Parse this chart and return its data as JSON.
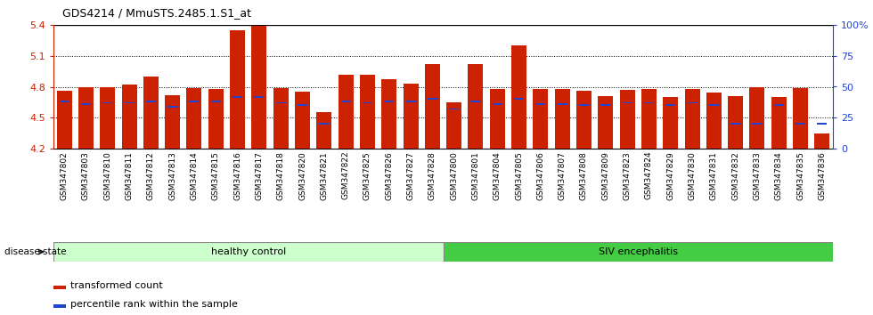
{
  "title": "GDS4214 / MmuSTS.2485.1.S1_at",
  "samples": [
    "GSM347802",
    "GSM347803",
    "GSM347810",
    "GSM347811",
    "GSM347812",
    "GSM347813",
    "GSM347814",
    "GSM347815",
    "GSM347816",
    "GSM347817",
    "GSM347818",
    "GSM347820",
    "GSM347821",
    "GSM347822",
    "GSM347825",
    "GSM347826",
    "GSM347827",
    "GSM347828",
    "GSM347800",
    "GSM347801",
    "GSM347804",
    "GSM347805",
    "GSM347806",
    "GSM347807",
    "GSM347808",
    "GSM347809",
    "GSM347823",
    "GSM347824",
    "GSM347829",
    "GSM347830",
    "GSM347831",
    "GSM347832",
    "GSM347833",
    "GSM347834",
    "GSM347835",
    "GSM347836"
  ],
  "transformed_count": [
    4.76,
    4.8,
    4.8,
    4.82,
    4.9,
    4.72,
    4.79,
    4.78,
    5.35,
    5.39,
    4.79,
    4.75,
    4.55,
    4.92,
    4.92,
    4.87,
    4.83,
    5.02,
    4.65,
    5.02,
    4.78,
    5.2,
    4.78,
    4.78,
    4.76,
    4.71,
    4.77,
    4.78,
    4.7,
    4.78,
    4.74,
    4.71,
    4.8,
    4.7,
    4.79,
    4.35
  ],
  "percentile_rank": [
    38,
    36,
    37,
    37,
    38,
    34,
    38,
    38,
    42,
    42,
    37,
    35,
    20,
    38,
    37,
    38,
    38,
    40,
    32,
    38,
    36,
    40,
    36,
    36,
    35,
    35,
    37,
    37,
    35,
    37,
    35,
    20,
    20,
    35,
    20,
    20
  ],
  "healthy_count": 18,
  "siv_count": 18,
  "ylim_left": [
    4.2,
    5.4
  ],
  "ylim_right": [
    0,
    100
  ],
  "yticks_left": [
    4.2,
    4.5,
    4.8,
    5.1,
    5.4
  ],
  "yticks_right": [
    0,
    25,
    50,
    75,
    100
  ],
  "bar_color": "#cc2200",
  "percentile_color": "#2244cc",
  "healthy_bg": "#ccffcc",
  "siv_bg": "#44cc44",
  "bar_width": 0.7
}
